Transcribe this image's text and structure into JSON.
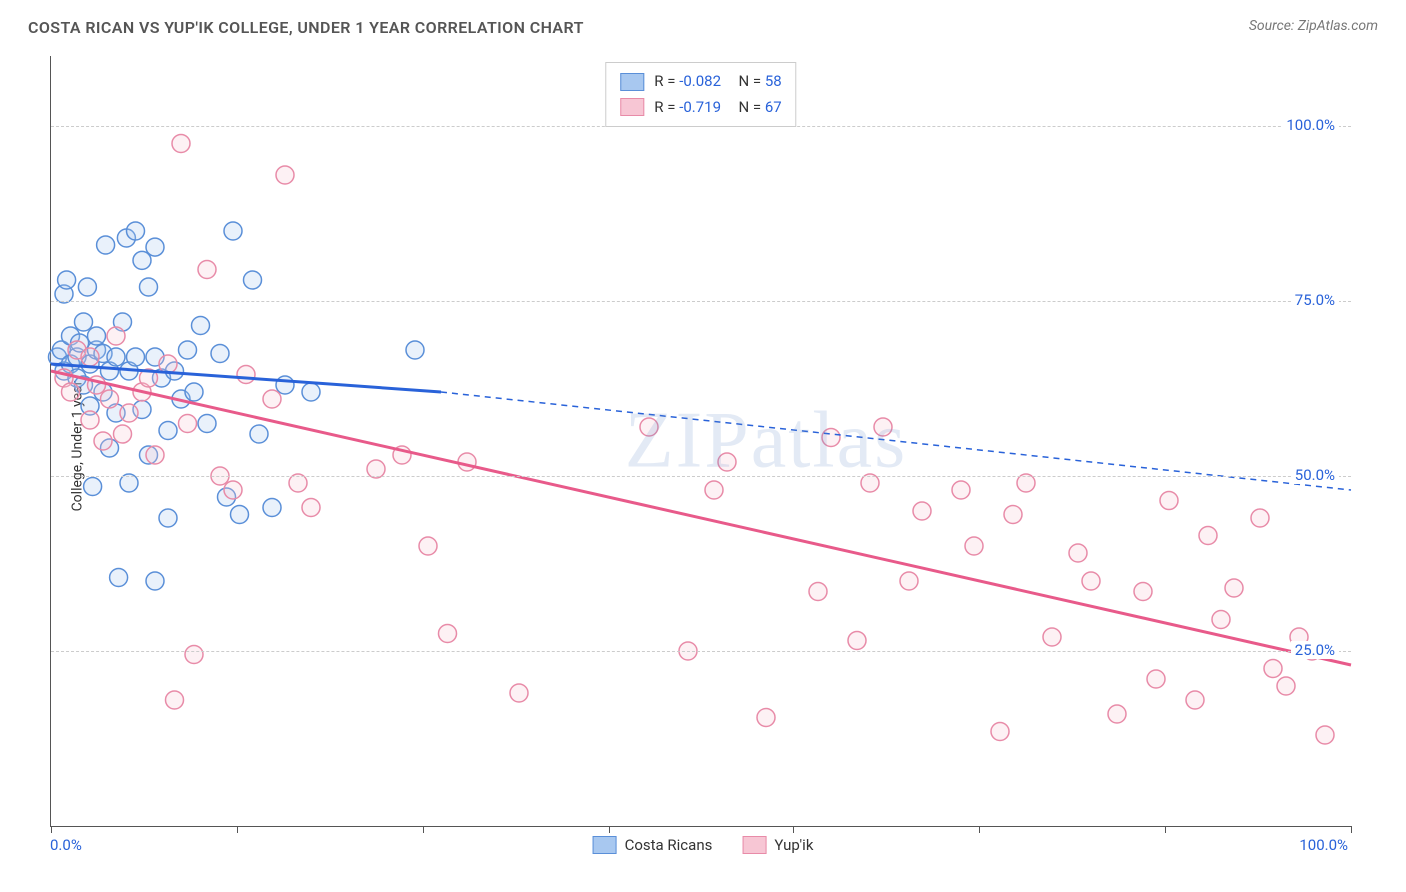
{
  "title": "COSTA RICAN VS YUP'IK COLLEGE, UNDER 1 YEAR CORRELATION CHART",
  "source": "Source: ZipAtlas.com",
  "ylabel": "College, Under 1 year",
  "watermark": "ZIPatlas",
  "chart": {
    "type": "scatter",
    "xlim": [
      0,
      100
    ],
    "ylim": [
      0,
      110
    ],
    "xtick_positions": [
      0,
      14.3,
      28.6,
      42.9,
      57.1,
      71.4,
      85.7,
      100
    ],
    "ytick_positions": [
      25,
      50,
      75,
      100
    ],
    "ytick_labels": [
      "25.0%",
      "50.0%",
      "75.0%",
      "100.0%"
    ],
    "xlabel_start": "0.0%",
    "xlabel_end": "100.0%",
    "background_color": "#ffffff",
    "grid_color": "#cccccc",
    "marker_radius": 9,
    "marker_stroke_width": 1.5,
    "fill_opacity": 0.25,
    "line_width": 3,
    "series": [
      {
        "name": "Costa Ricans",
        "color_fill": "#a8c8f0",
        "color_stroke": "#5a8fd8",
        "line_color": "#2962d9",
        "R": "-0.082",
        "N": "58",
        "regression": {
          "x1": 0,
          "y1": 66,
          "x2_solid": 30,
          "y2_solid": 62,
          "x2": 100,
          "y2": 48
        },
        "points": [
          [
            0.5,
            67
          ],
          [
            0.8,
            68
          ],
          [
            1,
            65
          ],
          [
            1,
            76
          ],
          [
            1.2,
            78
          ],
          [
            1.5,
            66
          ],
          [
            1.5,
            70
          ],
          [
            2,
            64
          ],
          [
            2,
            67
          ],
          [
            2.2,
            69
          ],
          [
            2.5,
            63
          ],
          [
            2.5,
            72
          ],
          [
            2.8,
            77
          ],
          [
            3,
            60
          ],
          [
            3,
            66
          ],
          [
            3.2,
            48.5
          ],
          [
            3.5,
            68
          ],
          [
            3.5,
            70
          ],
          [
            4,
            62
          ],
          [
            4,
            67.5
          ],
          [
            4.2,
            83
          ],
          [
            4.5,
            54
          ],
          [
            4.5,
            65
          ],
          [
            5,
            59
          ],
          [
            5,
            67
          ],
          [
            5.2,
            35.5
          ],
          [
            5.5,
            72
          ],
          [
            5.8,
            84
          ],
          [
            6,
            49
          ],
          [
            6,
            65
          ],
          [
            6.5,
            67
          ],
          [
            6.5,
            85
          ],
          [
            7,
            59.5
          ],
          [
            7,
            80.8
          ],
          [
            7.5,
            53
          ],
          [
            7.5,
            77
          ],
          [
            8,
            35
          ],
          [
            8,
            67
          ],
          [
            8,
            82.7
          ],
          [
            8.5,
            64
          ],
          [
            9,
            56.5
          ],
          [
            9,
            44
          ],
          [
            9.5,
            65
          ],
          [
            10,
            61
          ],
          [
            10.5,
            68
          ],
          [
            11,
            62
          ],
          [
            11.5,
            71.5
          ],
          [
            12,
            57.5
          ],
          [
            13,
            67.5
          ],
          [
            13.5,
            47
          ],
          [
            14,
            85
          ],
          [
            14.5,
            44.5
          ],
          [
            15.5,
            78
          ],
          [
            16,
            56
          ],
          [
            17,
            45.5
          ],
          [
            18,
            63
          ],
          [
            20,
            62
          ],
          [
            28,
            68
          ]
        ]
      },
      {
        "name": "Yup'ik",
        "color_fill": "#f7c6d4",
        "color_stroke": "#e88ba8",
        "line_color": "#e85a8a",
        "R": "-0.719",
        "N": "67",
        "regression": {
          "x1": 0,
          "y1": 65,
          "x2_solid": 100,
          "y2_solid": 23,
          "x2": 100,
          "y2": 23
        },
        "points": [
          [
            1,
            64
          ],
          [
            1.5,
            62
          ],
          [
            2,
            68
          ],
          [
            3,
            58
          ],
          [
            3,
            67
          ],
          [
            3.5,
            63
          ],
          [
            4,
            55
          ],
          [
            4.5,
            61
          ],
          [
            5,
            70
          ],
          [
            5.5,
            56
          ],
          [
            6,
            59
          ],
          [
            7,
            62
          ],
          [
            7.5,
            64
          ],
          [
            8,
            53
          ],
          [
            9,
            66
          ],
          [
            9.5,
            18
          ],
          [
            10,
            97.5
          ],
          [
            10.5,
            57.5
          ],
          [
            11,
            24.5
          ],
          [
            12,
            79.5
          ],
          [
            13,
            50
          ],
          [
            14,
            48
          ],
          [
            15,
            64.5
          ],
          [
            17,
            61
          ],
          [
            18,
            93
          ],
          [
            19,
            49
          ],
          [
            20,
            45.5
          ],
          [
            25,
            51
          ],
          [
            27,
            53
          ],
          [
            29,
            40
          ],
          [
            30.5,
            27.5
          ],
          [
            32,
            52
          ],
          [
            36,
            19
          ],
          [
            46,
            57
          ],
          [
            49,
            25
          ],
          [
            51,
            48
          ],
          [
            52,
            52
          ],
          [
            55,
            15.5
          ],
          [
            59,
            33.5
          ],
          [
            60,
            55.5
          ],
          [
            62,
            26.5
          ],
          [
            63,
            49
          ],
          [
            64,
            57
          ],
          [
            66,
            35
          ],
          [
            67,
            45
          ],
          [
            70,
            48
          ],
          [
            71,
            40
          ],
          [
            73,
            13.5
          ],
          [
            74,
            44.5
          ],
          [
            75,
            49
          ],
          [
            77,
            27
          ],
          [
            79,
            39
          ],
          [
            80,
            35
          ],
          [
            82,
            16
          ],
          [
            84,
            33.5
          ],
          [
            85,
            21
          ],
          [
            86,
            46.5
          ],
          [
            88,
            18
          ],
          [
            89,
            41.5
          ],
          [
            90,
            29.5
          ],
          [
            91,
            34
          ],
          [
            93,
            44
          ],
          [
            94,
            22.5
          ],
          [
            95,
            20
          ],
          [
            96,
            27
          ],
          [
            97,
            25
          ],
          [
            98,
            13
          ]
        ]
      }
    ]
  },
  "legend_bottom": [
    {
      "label": "Costa Ricans",
      "fill": "#a8c8f0",
      "stroke": "#5a8fd8"
    },
    {
      "label": "Yup'ik",
      "fill": "#f7c6d4",
      "stroke": "#e88ba8"
    }
  ]
}
